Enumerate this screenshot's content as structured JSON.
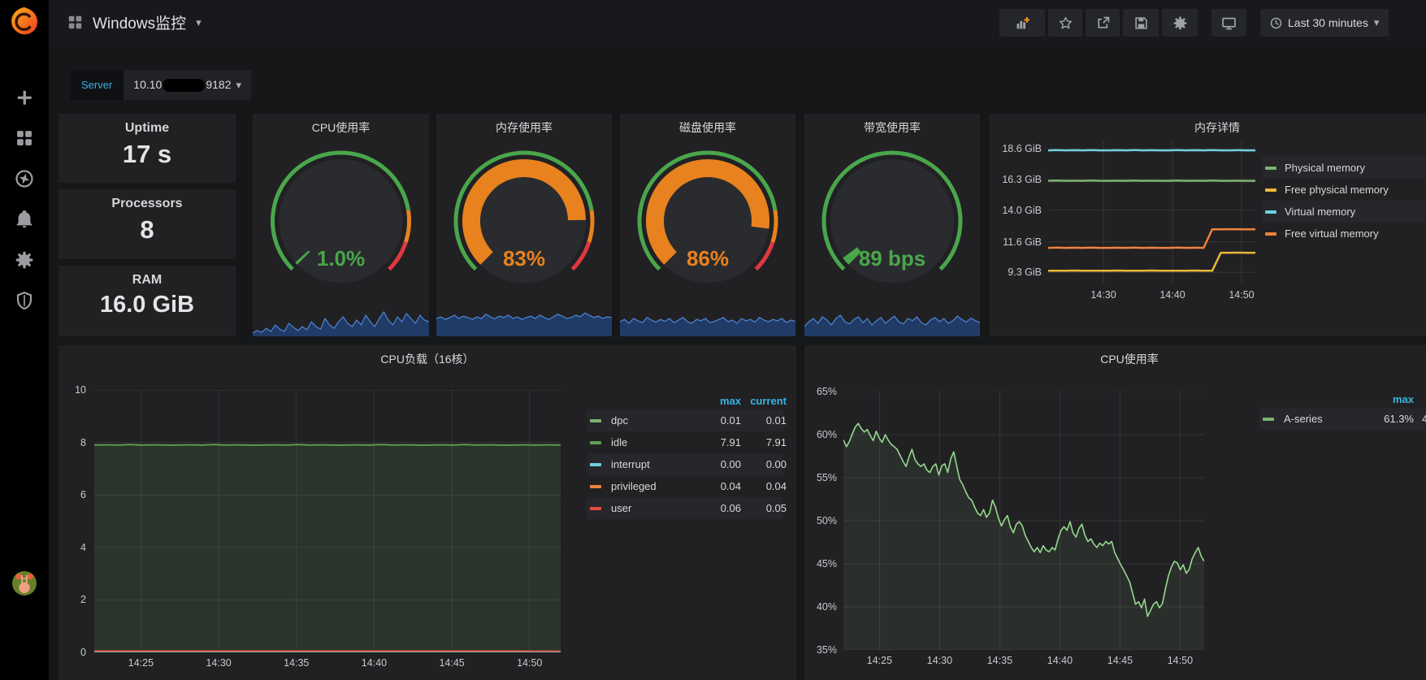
{
  "header": {
    "title": "Windows监控",
    "toolbar_icons": [
      "add-panel",
      "star",
      "share",
      "save",
      "settings"
    ],
    "tv_icon": "monitor",
    "time_range": "Last 30 minutes"
  },
  "sidebar": {
    "logo": "grafana-logo",
    "icons": [
      "plus",
      "dashboards",
      "explore",
      "alerting",
      "configuration",
      "server-admin"
    ],
    "avatar": "user-avatar"
  },
  "variables": {
    "label": "Server",
    "value_prefix": "10.10",
    "value_suffix": "9182",
    "redacted": true
  },
  "accent_colors": {
    "cyan": "#33b5e5",
    "green": "#4aa64b",
    "orange": "#e8821e",
    "red": "#e0383e",
    "spark_line": "#4e86d9"
  },
  "stats": [
    {
      "title": "Uptime",
      "value": "17 s"
    },
    {
      "title": "Processors",
      "value": "8"
    },
    {
      "title": "RAM",
      "value": "16.0 GiB"
    }
  ],
  "gauges": [
    {
      "title": "CPU使用率",
      "value": "1.0%",
      "value_color": "#4aa64b",
      "fraction": 0.01,
      "thresholds": [
        {
          "to": 0.8,
          "color": "#4aa64b"
        },
        {
          "to": 0.9,
          "color": "#e8821e"
        },
        {
          "to": 1,
          "color": "#e0383e"
        }
      ],
      "sparkline": [
        0.1,
        0.18,
        0.12,
        0.25,
        0.15,
        0.35,
        0.22,
        0.15,
        0.4,
        0.28,
        0.18,
        0.3,
        0.2,
        0.45,
        0.3,
        0.22,
        0.55,
        0.35,
        0.25,
        0.45,
        0.6,
        0.4,
        0.3,
        0.5,
        0.35,
        0.65,
        0.45,
        0.3,
        0.55,
        0.75,
        0.5,
        0.35,
        0.6,
        0.45,
        0.7,
        0.55,
        0.4,
        0.65,
        0.5,
        0.45
      ]
    },
    {
      "title": "内存使用率",
      "value": "83%",
      "value_color": "#e8821e",
      "fraction": 0.83,
      "thresholds": [
        {
          "to": 0.8,
          "color": "#4aa64b"
        },
        {
          "to": 0.9,
          "color": "#e8821e"
        },
        {
          "to": 1,
          "color": "#e0383e"
        }
      ],
      "sparkline": [
        0.55,
        0.6,
        0.52,
        0.58,
        0.65,
        0.55,
        0.62,
        0.58,
        0.52,
        0.6,
        0.55,
        0.68,
        0.6,
        0.54,
        0.62,
        0.58,
        0.65,
        0.55,
        0.6,
        0.52,
        0.58,
        0.62,
        0.55,
        0.65,
        0.58,
        0.52,
        0.6,
        0.68,
        0.62,
        0.55,
        0.58,
        0.65,
        0.6,
        0.72,
        0.65,
        0.58,
        0.62,
        0.55,
        0.6,
        0.58
      ]
    },
    {
      "title": "磁盘使用率",
      "value": "86%",
      "value_color": "#e8821e",
      "fraction": 0.86,
      "thresholds": [
        {
          "to": 0.8,
          "color": "#4aa64b"
        },
        {
          "to": 0.9,
          "color": "#e8821e"
        },
        {
          "to": 1,
          "color": "#e0383e"
        }
      ],
      "sparkline": [
        0.45,
        0.52,
        0.4,
        0.55,
        0.48,
        0.42,
        0.58,
        0.5,
        0.44,
        0.52,
        0.46,
        0.55,
        0.42,
        0.5,
        0.58,
        0.45,
        0.4,
        0.52,
        0.48,
        0.55,
        0.42,
        0.46,
        0.52,
        0.58,
        0.45,
        0.5,
        0.4,
        0.55,
        0.48,
        0.52,
        0.44,
        0.58,
        0.5,
        0.45,
        0.52,
        0.48,
        0.55,
        0.42,
        0.5,
        0.46
      ]
    },
    {
      "title": "带宽使用率",
      "value": "89 bps",
      "value_color": "#4aa64b",
      "fraction": 0.03,
      "thresholds": [
        {
          "to": 1,
          "color": "#4aa64b"
        }
      ],
      "sparkline": [
        0.3,
        0.45,
        0.55,
        0.4,
        0.6,
        0.5,
        0.35,
        0.55,
        0.65,
        0.45,
        0.38,
        0.52,
        0.6,
        0.42,
        0.55,
        0.35,
        0.48,
        0.58,
        0.4,
        0.52,
        0.62,
        0.45,
        0.38,
        0.55,
        0.48,
        0.6,
        0.42,
        0.35,
        0.5,
        0.58,
        0.45,
        0.55,
        0.4,
        0.48,
        0.62,
        0.52,
        0.44,
        0.56,
        0.48,
        0.42
      ]
    }
  ],
  "chart_data": {
    "memory_detail": {
      "type": "line",
      "title": "内存详情",
      "ylim": [
        8.4,
        19.3
      ],
      "yticks": [
        {
          "v": 18.6,
          "l": "18.6 GiB"
        },
        {
          "v": 16.3,
          "l": "16.3 GiB"
        },
        {
          "v": 14.0,
          "l": "14.0 GiB"
        },
        {
          "v": 11.6,
          "l": "11.6 GiB"
        },
        {
          "v": 9.3,
          "l": "9.3 GiB"
        }
      ],
      "xticks": [
        {
          "p": 0.2667,
          "l": "14:30"
        },
        {
          "p": 0.6,
          "l": "14:40"
        },
        {
          "p": 0.9333,
          "l": "14:50"
        }
      ],
      "legend": [
        {
          "label": "Physical memory",
          "color": "#7eb26d"
        },
        {
          "label": "Free physical memory",
          "color": "#eab839"
        },
        {
          "label": "Virtual memory",
          "color": "#6ed0e0"
        },
        {
          "label": "Free virtual memory",
          "color": "#ef843c"
        }
      ],
      "series": [
        {
          "name": "Virtual memory",
          "color": "#6ed0e0",
          "width": 2.5,
          "values": [
            18.5,
            18.52,
            18.5,
            18.51,
            18.5,
            18.52,
            18.5,
            18.5,
            18.51,
            18.5,
            18.52,
            18.5,
            18.51,
            18.5,
            18.5,
            18.52,
            18.5,
            18.51,
            18.5,
            18.52,
            18.5,
            18.5,
            18.51,
            18.5,
            18.5
          ]
        },
        {
          "name": "Physical memory",
          "color": "#7eb26d",
          "width": 2.5,
          "values": [
            16.2,
            16.22,
            16.2,
            16.21,
            16.2,
            16.22,
            16.2,
            16.2,
            16.21,
            16.2,
            16.22,
            16.2,
            16.21,
            16.2,
            16.2,
            16.22,
            16.2,
            16.21,
            16.2,
            16.22,
            16.2,
            16.2,
            16.21,
            16.2,
            16.2
          ]
        },
        {
          "name": "Free virtual memory",
          "color": "#ef843c",
          "width": 2.5,
          "values": [
            11.15,
            11.17,
            11.15,
            11.16,
            11.15,
            11.17,
            11.15,
            11.15,
            11.16,
            11.15,
            11.17,
            11.15,
            11.16,
            11.15,
            11.15,
            11.17,
            11.15,
            11.16,
            11.15,
            12.55,
            12.55,
            12.56,
            12.55,
            12.55,
            12.55
          ]
        },
        {
          "name": "Free physical memory",
          "color": "#eab839",
          "width": 2.5,
          "values": [
            9.42,
            9.43,
            9.42,
            9.44,
            9.42,
            9.43,
            9.42,
            9.42,
            9.44,
            9.42,
            9.43,
            9.42,
            9.44,
            9.42,
            9.42,
            9.43,
            9.42,
            9.44,
            9.42,
            9.42,
            10.78,
            10.78,
            10.79,
            10.78,
            10.78
          ]
        }
      ]
    },
    "cpu_load": {
      "type": "line",
      "title": "CPU负载（16核）",
      "ylim": [
        0,
        10
      ],
      "yticks": [
        {
          "v": 10,
          "l": "10"
        },
        {
          "v": 8,
          "l": "8"
        },
        {
          "v": 6,
          "l": "6"
        },
        {
          "v": 4,
          "l": "4"
        },
        {
          "v": 2,
          "l": "2"
        },
        {
          "v": 0,
          "l": "0"
        }
      ],
      "xticks": [
        {
          "p": 0.1,
          "l": "14:25"
        },
        {
          "p": 0.2667,
          "l": "14:30"
        },
        {
          "p": 0.4333,
          "l": "14:35"
        },
        {
          "p": 0.6,
          "l": "14:40"
        },
        {
          "p": 0.7667,
          "l": "14:45"
        },
        {
          "p": 0.9333,
          "l": "14:50"
        }
      ],
      "legend_header": [
        "max",
        "current"
      ],
      "legend_rows": [
        {
          "label": "dpc",
          "color": "#7eb26d",
          "max": "0.01",
          "current": "0.01"
        },
        {
          "label": "idle",
          "color": "#629e51",
          "max": "7.91",
          "current": "7.91"
        },
        {
          "label": "interrupt",
          "color": "#6ed0e0",
          "max": "0.00",
          "current": "0.00"
        },
        {
          "label": "privileged",
          "color": "#ef843c",
          "max": "0.04",
          "current": "0.04"
        },
        {
          "label": "user",
          "color": "#e24d42",
          "max": "0.06",
          "current": "0.05"
        }
      ],
      "series": [
        {
          "name": "idle",
          "color": "#629e51",
          "width": 1.8,
          "fill": "rgba(98,158,81,0.16)",
          "values": [
            7.9,
            7.91,
            7.9,
            7.92,
            7.9,
            7.91,
            7.9,
            7.9,
            7.91,
            7.9,
            7.92,
            7.9,
            7.91,
            7.9,
            7.9,
            7.91,
            7.9,
            7.92,
            7.9,
            7.91,
            7.9,
            7.9,
            7.91,
            7.9,
            7.92,
            7.9,
            7.91,
            7.9,
            7.9,
            7.91,
            7.9,
            7.92,
            7.9,
            7.91,
            7.9,
            7.9,
            7.91,
            7.9,
            7.91,
            7.9
          ]
        },
        {
          "name": "dpc",
          "color": "#7eb26d",
          "width": 1.2,
          "values": [
            0.01,
            0.01,
            0.01,
            0.01,
            0.01,
            0.01,
            0.01,
            0.01,
            0.01,
            0.01
          ]
        },
        {
          "name": "interrupt",
          "color": "#6ed0e0",
          "width": 1.2,
          "values": [
            0.0,
            0.0,
            0.0,
            0.0,
            0.0,
            0.0,
            0.0,
            0.0,
            0.0,
            0.0
          ]
        },
        {
          "name": "privileged",
          "color": "#ef843c",
          "width": 1.2,
          "values": [
            0.04,
            0.04,
            0.04,
            0.04,
            0.04,
            0.04,
            0.04,
            0.04,
            0.04,
            0.04
          ]
        },
        {
          "name": "user",
          "color": "#e24d42",
          "width": 1.5,
          "values": [
            0.06,
            0.06,
            0.06,
            0.06,
            0.06,
            0.06,
            0.06,
            0.06,
            0.06,
            0.05
          ]
        }
      ]
    },
    "cpu_usage": {
      "type": "line",
      "title": "CPU使用率",
      "ylim": [
        35,
        65
      ],
      "yticks": [
        {
          "v": 65,
          "l": "65%"
        },
        {
          "v": 60,
          "l": "60%"
        },
        {
          "v": 55,
          "l": "55%"
        },
        {
          "v": 50,
          "l": "50%"
        },
        {
          "v": 45,
          "l": "45%"
        },
        {
          "v": 40,
          "l": "40%"
        },
        {
          "v": 35,
          "l": "35%"
        }
      ],
      "xticks": [
        {
          "p": 0.1,
          "l": "14:25"
        },
        {
          "p": 0.2667,
          "l": "14:30"
        },
        {
          "p": 0.4333,
          "l": "14:35"
        },
        {
          "p": 0.6,
          "l": "14:40"
        },
        {
          "p": 0.7667,
          "l": "14:45"
        },
        {
          "p": 0.9333,
          "l": "14:50"
        }
      ],
      "legend_header": [
        "max"
      ],
      "legend_rows": [
        {
          "label": "A-series",
          "color": "#7eb26d",
          "max": "61.3%",
          "current_partial": "4"
        }
      ],
      "series": [
        {
          "name": "A-series",
          "color": "#96d98d",
          "width": 1.6,
          "fill": "rgba(150,217,141,0.08)",
          "values": [
            59.4,
            58.6,
            59.2,
            60.1,
            60.9,
            61.3,
            60.7,
            60.3,
            60.6,
            59.9,
            59.3,
            60.4,
            59.6,
            59.1,
            60.0,
            59.4,
            58.9,
            58.6,
            58.3,
            57.6,
            56.9,
            56.3,
            57.4,
            58.3,
            57.1,
            56.6,
            56.3,
            56.6,
            55.9,
            55.6,
            56.3,
            56.6,
            55.3,
            56.4,
            56.6,
            55.6,
            57.2,
            58.0,
            56.4,
            54.8,
            54.2,
            53.4,
            52.7,
            52.4,
            51.6,
            50.9,
            50.6,
            51.3,
            50.4,
            50.9,
            52.4,
            51.6,
            50.3,
            49.4,
            50.1,
            50.6,
            49.3,
            48.6,
            49.6,
            49.9,
            49.4,
            48.3,
            47.6,
            46.9,
            46.4,
            46.9,
            46.3,
            47.1,
            46.6,
            46.4,
            46.9,
            46.6,
            47.9,
            48.9,
            49.3,
            48.9,
            49.9,
            48.6,
            48.1,
            49.1,
            49.6,
            48.3,
            47.6,
            47.9,
            47.3,
            46.9,
            47.4,
            47.1,
            47.6,
            47.3,
            47.6,
            46.3,
            45.6,
            44.9,
            44.3,
            43.6,
            42.9,
            41.6,
            40.3,
            40.6,
            39.9,
            40.9,
            38.9,
            39.6,
            40.3,
            40.6,
            39.9,
            40.4,
            42.1,
            43.6,
            44.6,
            45.3,
            45.1,
            44.3,
            44.9,
            43.9,
            44.4,
            45.6,
            46.3,
            46.9,
            45.9,
            45.3
          ]
        }
      ]
    }
  }
}
